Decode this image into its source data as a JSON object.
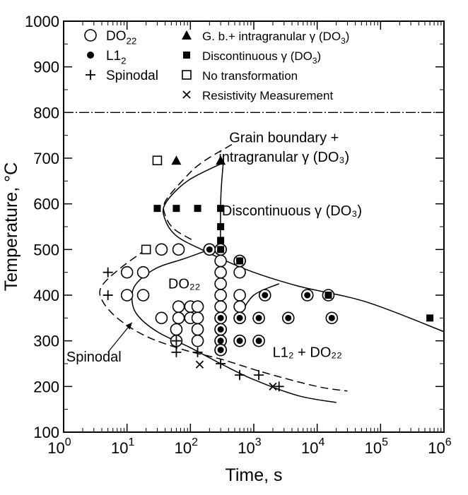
{
  "chart_data": {
    "type": "scatter",
    "title": "",
    "xlabel": "Time, s",
    "ylabel": "Temperature, °C",
    "x_scale": "log",
    "xlim": [
      1,
      1000000
    ],
    "ylim": [
      100,
      1000
    ],
    "x_ticks": [
      {
        "value": 1,
        "base": "10",
        "exp": "0"
      },
      {
        "value": 10,
        "base": "10",
        "exp": "1"
      },
      {
        "value": 100,
        "base": "10",
        "exp": "2"
      },
      {
        "value": 1000,
        "base": "10",
        "exp": "3"
      },
      {
        "value": 10000,
        "base": "10",
        "exp": "4"
      },
      {
        "value": 100000,
        "base": "10",
        "exp": "5"
      },
      {
        "value": 1000000,
        "base": "10",
        "exp": "6"
      }
    ],
    "y_ticks": [
      100,
      200,
      300,
      400,
      500,
      600,
      700,
      800,
      900,
      1000
    ],
    "legend": [
      {
        "marker": "open-circle",
        "label": "DO",
        "sub": "22"
      },
      {
        "marker": "filled-circle",
        "label": "L1",
        "sub": "2"
      },
      {
        "marker": "plus",
        "label": "Spinodal"
      },
      {
        "marker": "filled-triangle",
        "label": "G. b.+ intragranular γ (DO",
        "sub": "3",
        "tail": ")"
      },
      {
        "marker": "filled-square",
        "label": "Discontinuous γ (DO",
        "sub": "3",
        "tail": ")"
      },
      {
        "marker": "open-square",
        "label": "No transformation"
      },
      {
        "marker": "cross",
        "label": "Resistivity Measurement"
      }
    ],
    "annotations": [
      {
        "text": "Grain boundary +",
        "x": 3000,
        "y": 735
      },
      {
        "text": "intragranular γ (DO₃)",
        "x": 3000,
        "y": 692
      },
      {
        "text": "Discontinuous γ (DO₃)",
        "x": 4000,
        "y": 575
      },
      {
        "text": "DO₂₂",
        "x": 80,
        "y": 415
      },
      {
        "text": "Spinodal",
        "x": 3,
        "y": 255
      },
      {
        "text": "L1₂ + DO₂₂",
        "x": 7000,
        "y": 265
      }
    ],
    "reference_lines": [
      {
        "style": "dash-dot",
        "y": 800
      }
    ],
    "series": [
      {
        "name": "DO22",
        "marker": "open-circle",
        "points": [
          [
            10,
            450
          ],
          [
            18,
            450
          ],
          [
            10,
            400
          ],
          [
            18,
            400
          ],
          [
            35,
            500
          ],
          [
            65,
            500
          ],
          [
            35,
            350
          ],
          [
            65,
            350
          ],
          [
            65,
            375
          ],
          [
            100,
            375
          ],
          [
            100,
            350
          ],
          [
            130,
            375
          ],
          [
            130,
            350
          ],
          [
            130,
            325
          ],
          [
            130,
            300
          ],
          [
            60,
            300
          ],
          [
            60,
            325
          ],
          [
            300,
            475
          ],
          [
            300,
            450
          ],
          [
            300,
            425
          ],
          [
            300,
            400
          ],
          [
            300,
            375
          ],
          [
            300,
            350
          ],
          [
            300,
            325
          ],
          [
            300,
            300
          ],
          [
            300,
            280
          ],
          [
            600,
            475
          ],
          [
            600,
            450
          ],
          [
            600,
            400
          ],
          [
            600,
            375
          ],
          [
            600,
            350
          ],
          [
            600,
            300
          ],
          [
            200,
            500
          ],
          [
            300,
            500
          ]
        ]
      },
      {
        "name": "L12",
        "marker": "circled-dot",
        "points": [
          [
            300,
            500
          ],
          [
            300,
            350
          ],
          [
            300,
            325
          ],
          [
            300,
            300
          ],
          [
            300,
            280
          ],
          [
            600,
            475
          ],
          [
            600,
            350
          ],
          [
            600,
            300
          ],
          [
            1200,
            350
          ],
          [
            1200,
            300
          ],
          [
            1500,
            400
          ],
          [
            3500,
            350
          ],
          [
            7000,
            400
          ],
          [
            15000,
            400
          ],
          [
            17000,
            350
          ],
          [
            200,
            500
          ]
        ]
      },
      {
        "name": "Spinodal",
        "marker": "plus",
        "points": [
          [
            5,
            450
          ],
          [
            5,
            400
          ],
          [
            60,
            300
          ],
          [
            60,
            275
          ],
          [
            130,
            275
          ],
          [
            300,
            250
          ],
          [
            600,
            225
          ],
          [
            1200,
            225
          ],
          [
            2500,
            200
          ]
        ]
      },
      {
        "name": "G. b.+ intragranular",
        "marker": "filled-triangle",
        "points": [
          [
            60,
            695
          ],
          [
            300,
            695
          ]
        ]
      },
      {
        "name": "Discontinuous",
        "marker": "filled-square",
        "points": [
          [
            30,
            590
          ],
          [
            60,
            590
          ],
          [
            130,
            590
          ],
          [
            300,
            590
          ],
          [
            300,
            550
          ],
          [
            300,
            520
          ],
          [
            300,
            500
          ],
          [
            600,
            475
          ],
          [
            15000,
            400
          ],
          [
            600000,
            350
          ]
        ]
      },
      {
        "name": "No transformation",
        "marker": "open-square",
        "points": [
          [
            30,
            695
          ],
          [
            20,
            500
          ]
        ]
      },
      {
        "name": "Resistivity Measurement",
        "marker": "cross",
        "points": [
          [
            140,
            248
          ],
          [
            2000,
            200
          ]
        ]
      }
    ],
    "curves": [
      {
        "style": "dashed",
        "points": [
          [
            450,
            730
          ],
          [
            150,
            690
          ],
          [
            80,
            655
          ],
          [
            40,
            605
          ],
          [
            40,
            575
          ],
          [
            55,
            545
          ],
          [
            110,
            520
          ]
        ]
      },
      {
        "style": "solid",
        "points": [
          [
            330,
            690
          ],
          [
            90,
            650
          ],
          [
            40,
            600
          ],
          [
            40,
            565
          ],
          [
            60,
            530
          ],
          [
            150,
            500
          ],
          [
            800,
            455
          ],
          [
            5000,
            420
          ],
          [
            60000,
            385
          ],
          [
            1000000,
            320
          ]
        ]
      },
      {
        "style": "solid",
        "points": [
          [
            330,
            690
          ],
          [
            300,
            600
          ],
          [
            300,
            420
          ],
          [
            300,
            300
          ],
          [
            330,
            275
          ]
        ]
      },
      {
        "style": "solid",
        "points": [
          [
            600,
            355
          ],
          [
            1000,
            400
          ],
          [
            2500,
            425
          ]
        ]
      },
      {
        "style": "solid",
        "points": [
          [
            200,
            500
          ],
          [
            80,
            480
          ],
          [
            30,
            460
          ],
          [
            15,
            430
          ],
          [
            12,
            400
          ],
          [
            14,
            360
          ],
          [
            30,
            320
          ],
          [
            100,
            285
          ],
          [
            300,
            250
          ],
          [
            1000,
            215
          ],
          [
            5000,
            180
          ],
          [
            20000,
            165
          ]
        ]
      },
      {
        "style": "dashed",
        "points": [
          [
            20,
            500
          ],
          [
            8,
            460
          ],
          [
            4,
            420
          ],
          [
            4,
            390
          ],
          [
            7,
            350
          ],
          [
            20,
            310
          ],
          [
            80,
            280
          ],
          [
            300,
            260
          ],
          [
            1500,
            230
          ],
          [
            10000,
            200
          ],
          [
            30000,
            190
          ]
        ]
      }
    ]
  }
}
